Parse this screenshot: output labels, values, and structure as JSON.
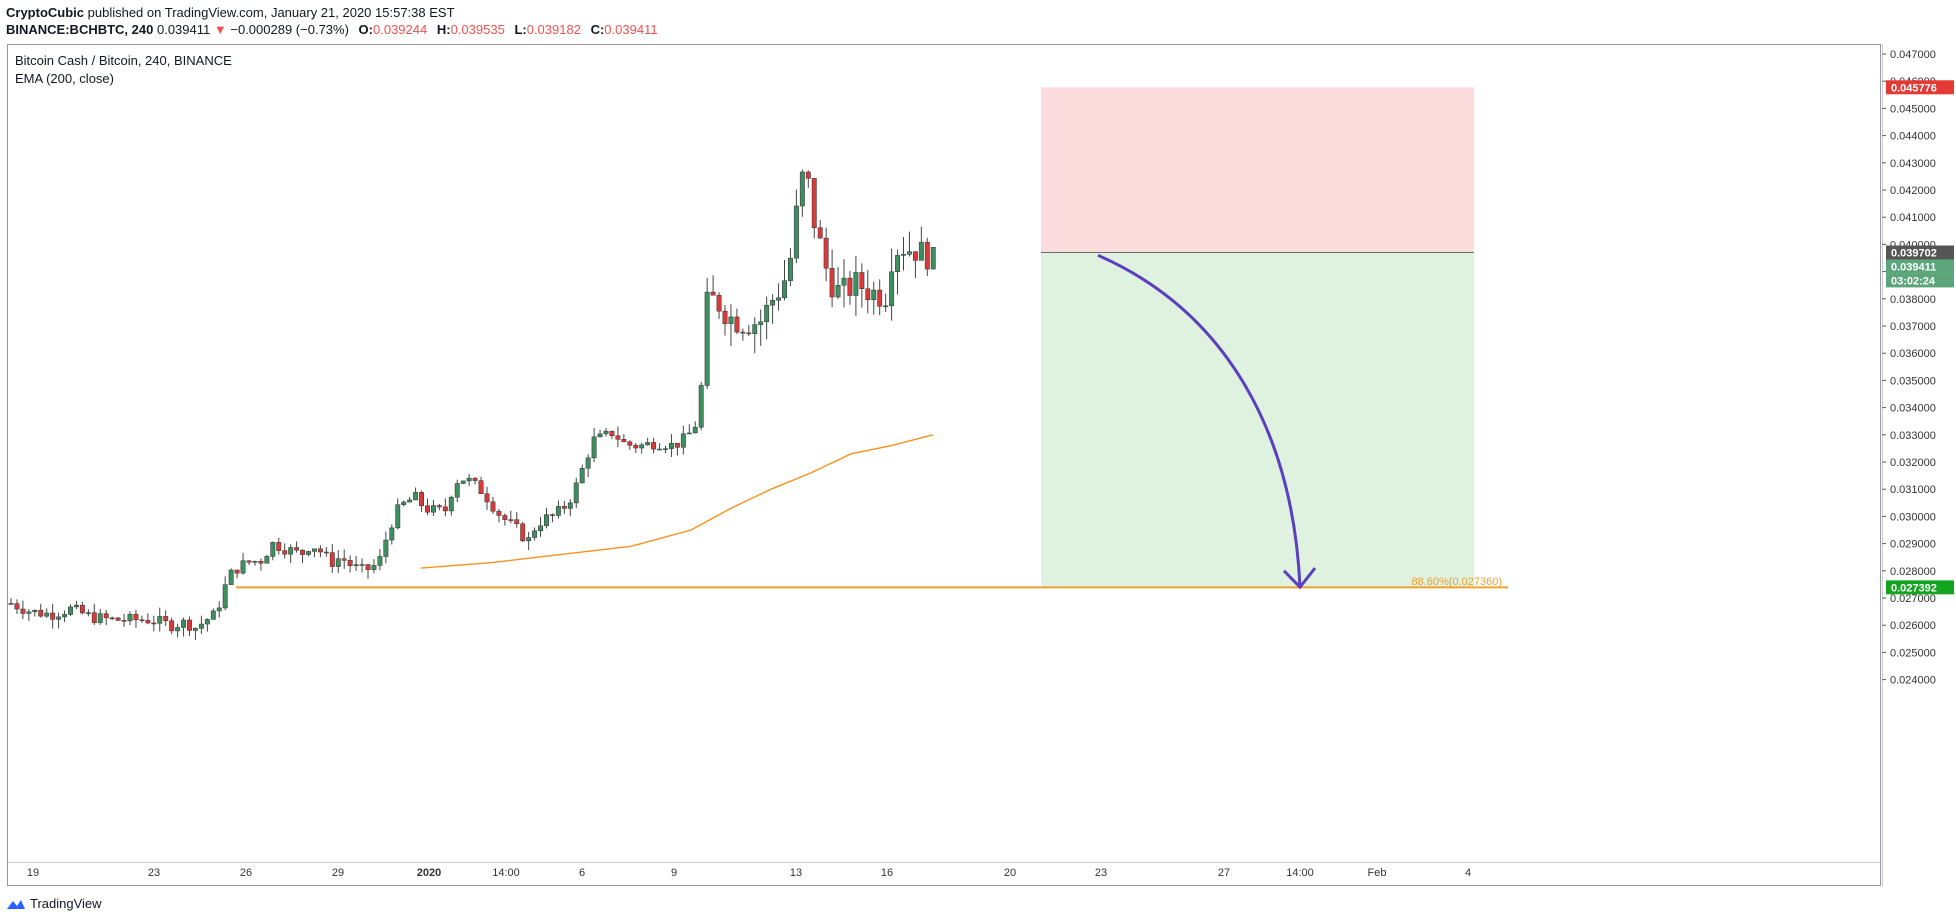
{
  "header": {
    "author": "CryptoCubic",
    "published_text": "published on TradingView.com, January 21, 2020 15:57:38 EST"
  },
  "ohlc": {
    "symbol": "BINANCE:BCHBTC, 240",
    "last": "0.039411",
    "arrow": "▼",
    "change": "−0.000289 (−0.73%)",
    "o_label": "O:",
    "o": "0.039244",
    "h_label": "H:",
    "h": "0.039535",
    "l_label": "L:",
    "l": "0.039182",
    "c_label": "C:",
    "c": "0.039411"
  },
  "legend": {
    "title": "Bitcoin Cash / Bitcoin, 240, BINANCE",
    "indicator": "EMA (200, close)"
  },
  "colors": {
    "up": "#3e8e5f",
    "down": "#d83a3a",
    "ema": "#f7921d",
    "stop_zone": "#fcdcdc",
    "target_zone": "#dff2df",
    "arrow": "#5b3fbf",
    "hline": "#f0a030",
    "stop_badge": "#e53935",
    "target_badge": "#13a520",
    "entry_badge": "#555555",
    "last_badge": "#5da57a"
  },
  "price_axis": {
    "ticks": [
      "0.047000",
      "0.046000",
      "0.045000",
      "0.044000",
      "0.043000",
      "0.042000",
      "0.041000",
      "0.040000",
      "0.039000",
      "0.038000",
      "0.037000",
      "0.036000",
      "0.035000",
      "0.034000",
      "0.033000",
      "0.032000",
      "0.031000",
      "0.030000",
      "0.029000",
      "0.028000",
      "0.027000",
      "0.026000",
      "0.025000",
      "0.024000"
    ],
    "badges": {
      "stop": "0.045776",
      "entry": "0.039702",
      "last": "0.039411",
      "countdown": "03:02:24",
      "target": "0.027392"
    }
  },
  "fib_label": "88.60%(0.027360)",
  "time_axis": {
    "ticks": [
      "19",
      "23",
      "26",
      "29",
      "2020",
      "14:00",
      "6",
      "9",
      "13",
      "16",
      "20",
      "23",
      "27",
      "14:00",
      "Feb",
      "4"
    ]
  },
  "footer": {
    "brand": "TradingView"
  },
  "chart_data": {
    "type": "candlestick",
    "symbol": "BCHBTC",
    "interval": "240",
    "exchange": "BINANCE",
    "ylim": [
      0.0236,
      0.0472
    ],
    "y_ticks": [
      0.047,
      0.046,
      0.045,
      0.044,
      0.043,
      0.042,
      0.041,
      0.04,
      0.039,
      0.038,
      0.037,
      0.036,
      0.035,
      0.034,
      0.033,
      0.032,
      0.031,
      0.03,
      0.029,
      0.028,
      0.027,
      0.026,
      0.025,
      0.024
    ],
    "x_ticks": [
      "19",
      "23",
      "26",
      "29",
      "2020",
      "14:00",
      "6",
      "9",
      "13",
      "16",
      "20",
      "23",
      "27",
      "14:00",
      "Feb",
      "4"
    ],
    "price_path": [
      [
        0,
        0.0268
      ],
      [
        20,
        0.0265
      ],
      [
        40,
        0.0264
      ],
      [
        60,
        0.0266
      ],
      [
        80,
        0.0263
      ],
      [
        100,
        0.0262
      ],
      [
        120,
        0.0262
      ],
      [
        140,
        0.0262
      ],
      [
        160,
        0.026
      ],
      [
        175,
        0.0261
      ],
      [
        185,
        0.0259
      ],
      [
        195,
        0.0262
      ],
      [
        205,
        0.0264
      ],
      [
        210,
        0.027
      ],
      [
        218,
        0.0278
      ],
      [
        226,
        0.0281
      ],
      [
        236,
        0.0283
      ],
      [
        250,
        0.0284
      ],
      [
        262,
        0.029
      ],
      [
        276,
        0.0288
      ],
      [
        290,
        0.0286
      ],
      [
        300,
        0.029
      ],
      [
        310,
        0.0287
      ],
      [
        320,
        0.0283
      ],
      [
        330,
        0.0285
      ],
      [
        340,
        0.0282
      ],
      [
        350,
        0.028
      ],
      [
        360,
        0.0281
      ],
      [
        368,
        0.0283
      ],
      [
        376,
        0.0293
      ],
      [
        384,
        0.0301
      ],
      [
        394,
        0.0305
      ],
      [
        404,
        0.0307
      ],
      [
        414,
        0.0303
      ],
      [
        424,
        0.0302
      ],
      [
        434,
        0.0302
      ],
      [
        444,
        0.0313
      ],
      [
        454,
        0.0314
      ],
      [
        462,
        0.0312
      ],
      [
        472,
        0.0309
      ],
      [
        480,
        0.0305
      ],
      [
        490,
        0.03
      ],
      [
        500,
        0.0297
      ],
      [
        510,
        0.0294
      ],
      [
        516,
        0.029
      ],
      [
        524,
        0.0296
      ],
      [
        532,
        0.0299
      ],
      [
        542,
        0.03
      ],
      [
        552,
        0.0303
      ],
      [
        562,
        0.0308
      ],
      [
        572,
        0.0318
      ],
      [
        582,
        0.0328
      ],
      [
        592,
        0.0329
      ],
      [
        602,
        0.0331
      ],
      [
        612,
        0.0327
      ],
      [
        622,
        0.0326
      ],
      [
        632,
        0.0326
      ],
      [
        642,
        0.0327
      ],
      [
        652,
        0.0327
      ],
      [
        662,
        0.0326
      ],
      [
        672,
        0.0328
      ],
      [
        680,
        0.0331
      ],
      [
        688,
        0.0336
      ],
      [
        696,
        0.0378
      ],
      [
        704,
        0.038
      ],
      [
        712,
        0.0376
      ],
      [
        720,
        0.0373
      ],
      [
        730,
        0.0371
      ],
      [
        740,
        0.0371
      ],
      [
        750,
        0.0372
      ],
      [
        760,
        0.0379
      ],
      [
        770,
        0.0384
      ],
      [
        778,
        0.0391
      ],
      [
        786,
        0.0413
      ],
      [
        794,
        0.043
      ],
      [
        802,
        0.041
      ],
      [
        810,
        0.0399
      ],
      [
        818,
        0.0387
      ],
      [
        826,
        0.0383
      ],
      [
        836,
        0.0383
      ],
      [
        846,
        0.0386
      ],
      [
        856,
        0.0383
      ],
      [
        866,
        0.0382
      ],
      [
        874,
        0.038
      ],
      [
        882,
        0.0398
      ],
      [
        892,
        0.0399
      ],
      [
        902,
        0.0398
      ],
      [
        912,
        0.0397
      ],
      [
        922,
        0.0394
      ]
    ],
    "ema_200": [
      [
        410,
        0.0281
      ],
      [
        480,
        0.0283
      ],
      [
        550,
        0.0286
      ],
      [
        620,
        0.0289
      ],
      [
        680,
        0.0295
      ],
      [
        720,
        0.0303
      ],
      [
        760,
        0.031
      ],
      [
        800,
        0.0316
      ],
      [
        840,
        0.0323
      ],
      [
        880,
        0.0326
      ],
      [
        922,
        0.033
      ]
    ],
    "annotations": {
      "stop_loss": 0.045776,
      "entry": 0.039702,
      "target": 0.027392,
      "fib_886": 0.02736,
      "horizontal_line": 0.02739
    }
  }
}
